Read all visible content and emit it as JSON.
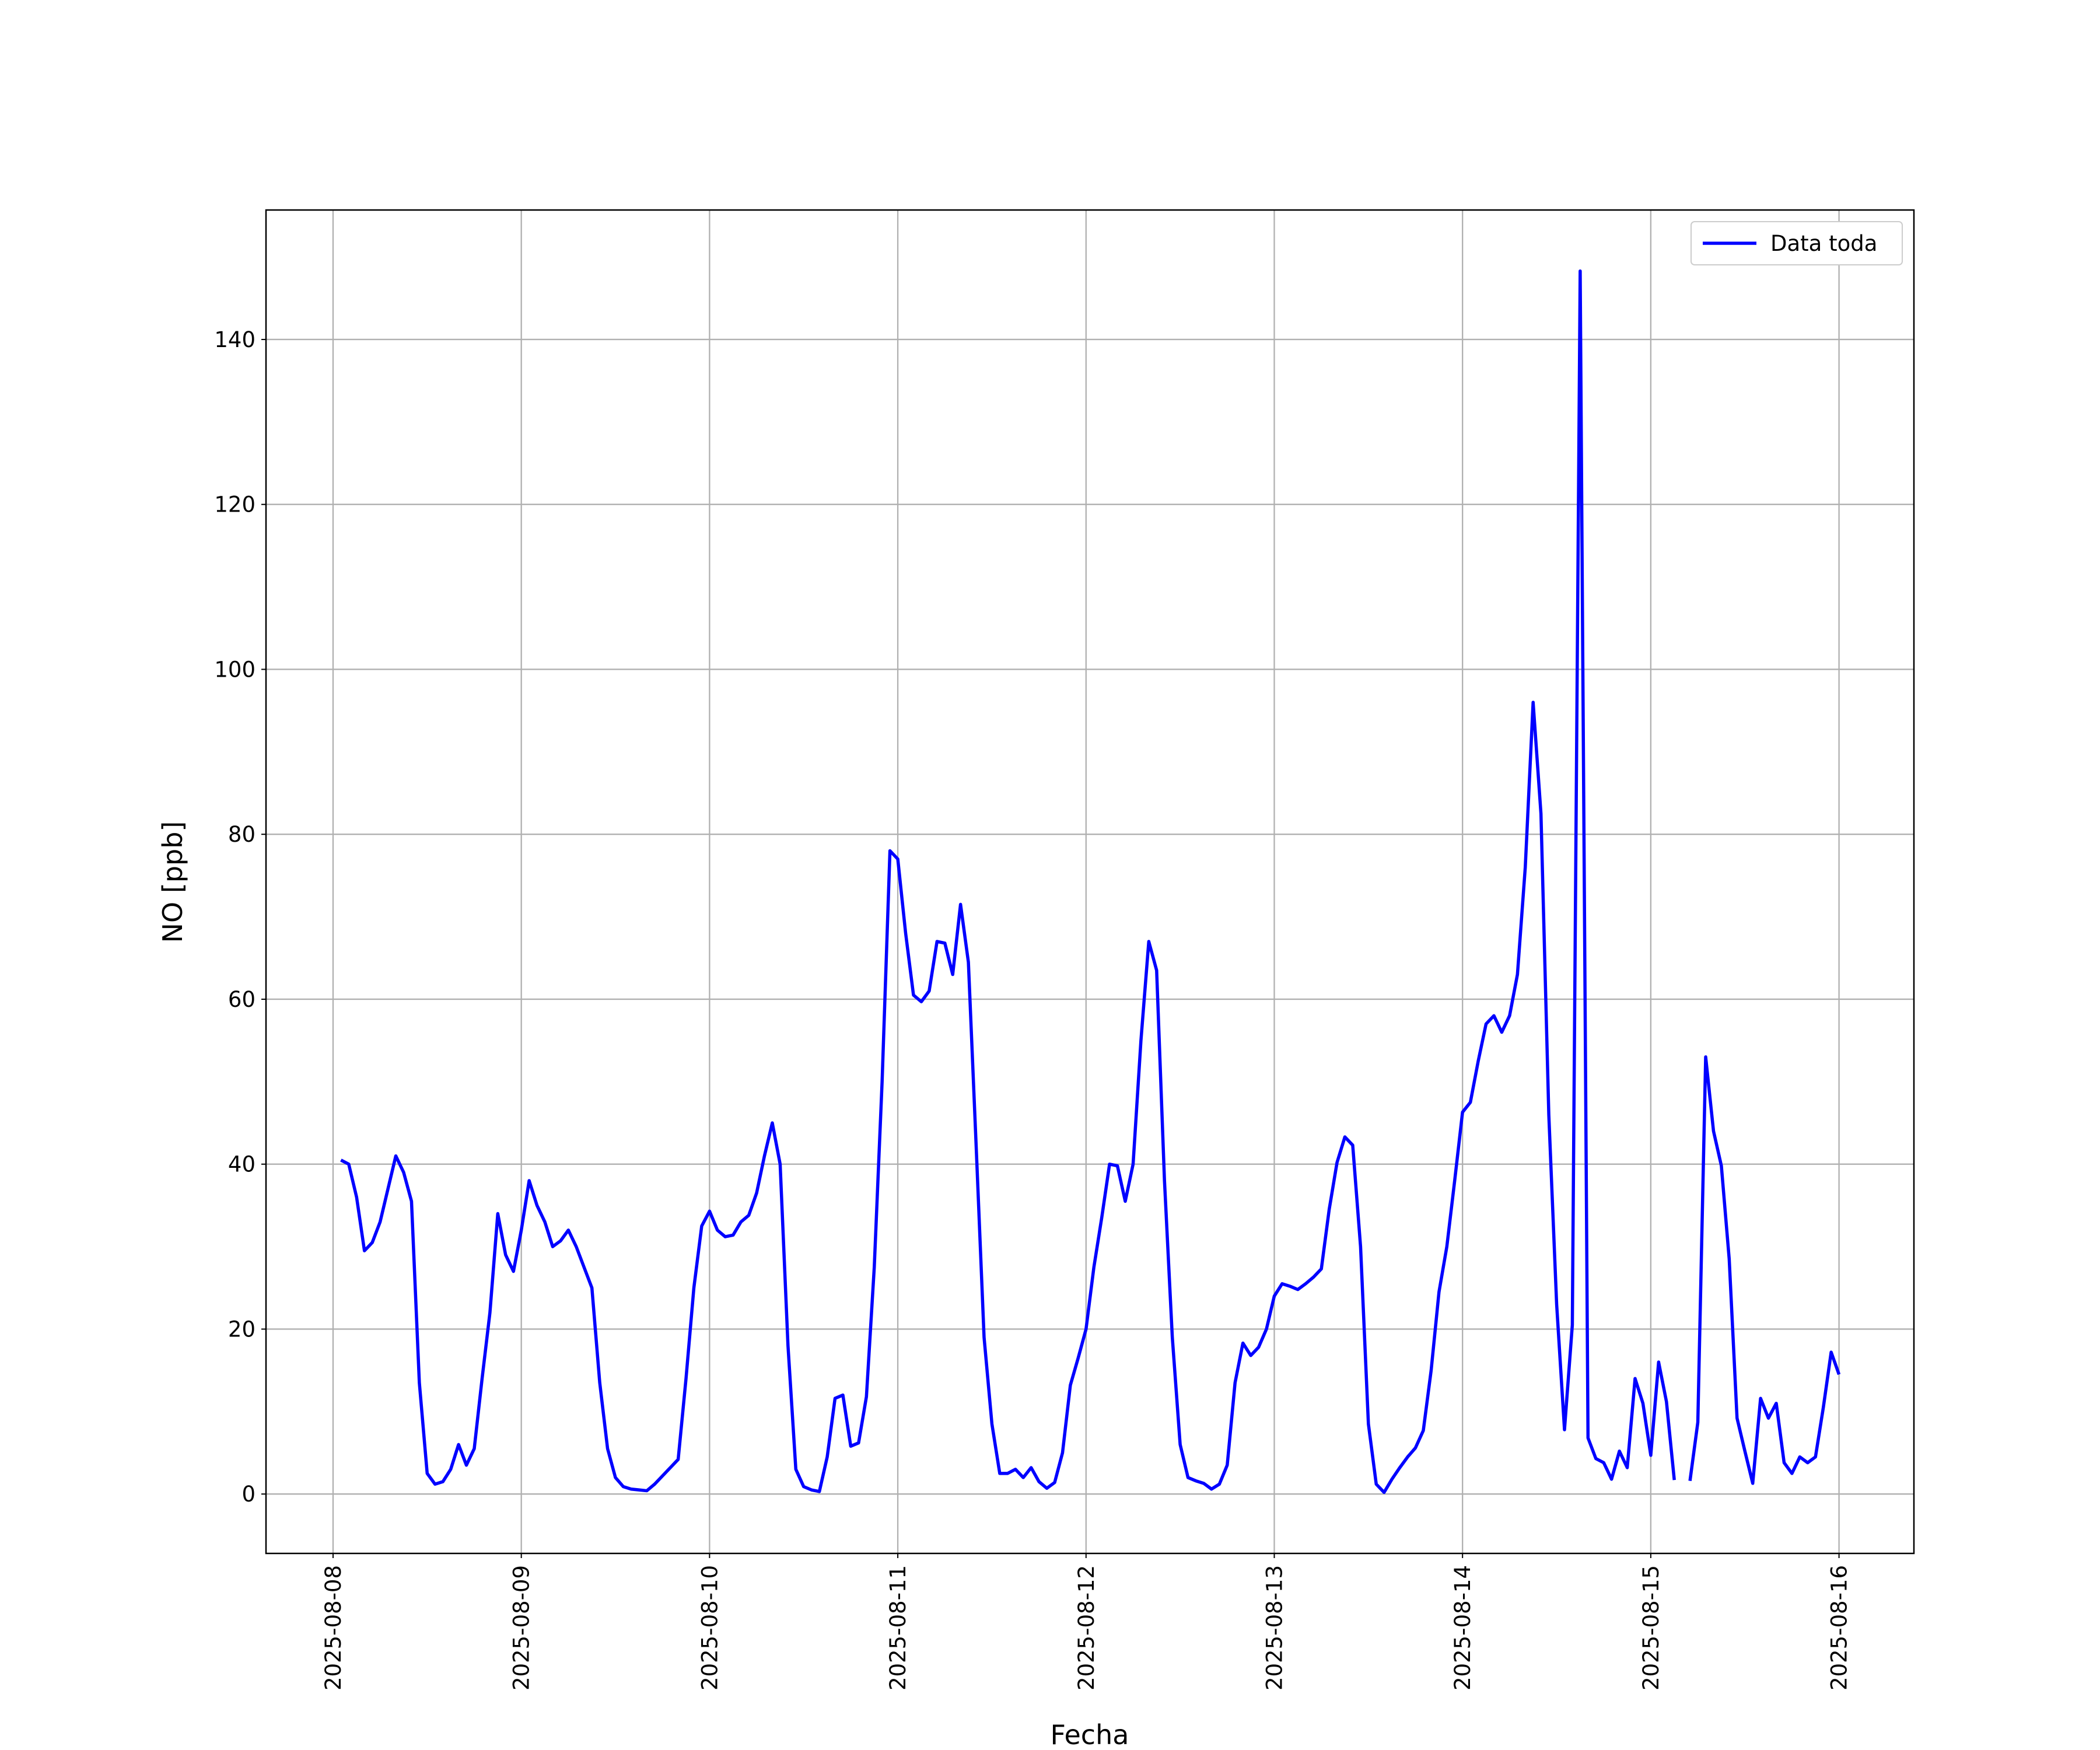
{
  "chart_data": {
    "type": "line",
    "xlabel": "Fecha",
    "ylabel": "NO [ppb]",
    "x": [
      "2025-08-08 01:00",
      "2025-08-08 02:00",
      "2025-08-08 03:00",
      "2025-08-08 04:00",
      "2025-08-08 05:00",
      "2025-08-08 06:00",
      "2025-08-08 07:00",
      "2025-08-08 08:00",
      "2025-08-08 09:00",
      "2025-08-08 10:00",
      "2025-08-08 11:00",
      "2025-08-08 12:00",
      "2025-08-08 13:00",
      "2025-08-08 14:00",
      "2025-08-08 15:00",
      "2025-08-08 16:00",
      "2025-08-08 17:00",
      "2025-08-08 18:00",
      "2025-08-08 19:00",
      "2025-08-08 20:00",
      "2025-08-08 21:00",
      "2025-08-08 22:00",
      "2025-08-08 23:00",
      "2025-08-09 00:00",
      "2025-08-09 01:00",
      "2025-08-09 02:00",
      "2025-08-09 03:00",
      "2025-08-09 04:00",
      "2025-08-09 05:00",
      "2025-08-09 06:00",
      "2025-08-09 07:00",
      "2025-08-09 08:00",
      "2025-08-09 09:00",
      "2025-08-09 10:00",
      "2025-08-09 11:00",
      "2025-08-09 12:00",
      "2025-08-09 13:00",
      "2025-08-09 14:00",
      "2025-08-09 15:00",
      "2025-08-09 16:00",
      "2025-08-09 17:00",
      "2025-08-09 18:00",
      "2025-08-09 19:00",
      "2025-08-09 20:00",
      "2025-08-09 21:00",
      "2025-08-09 22:00",
      "2025-08-09 23:00",
      "2025-08-10 00:00",
      "2025-08-10 01:00",
      "2025-08-10 02:00",
      "2025-08-10 03:00",
      "2025-08-10 04:00",
      "2025-08-10 05:00",
      "2025-08-10 06:00",
      "2025-08-10 07:00",
      "2025-08-10 08:00",
      "2025-08-10 09:00",
      "2025-08-10 10:00",
      "2025-08-10 11:00",
      "2025-08-10 12:00",
      "2025-08-10 13:00",
      "2025-08-10 14:00",
      "2025-08-10 15:00",
      "2025-08-10 16:00",
      "2025-08-10 17:00",
      "2025-08-10 18:00",
      "2025-08-10 19:00",
      "2025-08-10 20:00",
      "2025-08-10 21:00",
      "2025-08-10 22:00",
      "2025-08-10 23:00",
      "2025-08-11 00:00",
      "2025-08-11 01:00",
      "2025-08-11 02:00",
      "2025-08-11 03:00",
      "2025-08-11 04:00",
      "2025-08-11 05:00",
      "2025-08-11 06:00",
      "2025-08-11 07:00",
      "2025-08-11 08:00",
      "2025-08-11 09:00",
      "2025-08-11 10:00",
      "2025-08-11 11:00",
      "2025-08-11 12:00",
      "2025-08-11 13:00",
      "2025-08-11 14:00",
      "2025-08-11 15:00",
      "2025-08-11 16:00",
      "2025-08-11 17:00",
      "2025-08-11 18:00",
      "2025-08-11 19:00",
      "2025-08-11 20:00",
      "2025-08-11 21:00",
      "2025-08-11 22:00",
      "2025-08-11 23:00",
      "2025-08-12 00:00",
      "2025-08-12 01:00",
      "2025-08-12 02:00",
      "2025-08-12 03:00",
      "2025-08-12 04:00",
      "2025-08-12 05:00",
      "2025-08-12 06:00",
      "2025-08-12 07:00",
      "2025-08-12 08:00",
      "2025-08-12 09:00",
      "2025-08-12 10:00",
      "2025-08-12 11:00",
      "2025-08-12 12:00",
      "2025-08-12 13:00",
      "2025-08-12 14:00",
      "2025-08-12 15:00",
      "2025-08-12 16:00",
      "2025-08-12 17:00",
      "2025-08-12 18:00",
      "2025-08-12 19:00",
      "2025-08-12 20:00",
      "2025-08-12 21:00",
      "2025-08-12 22:00",
      "2025-08-12 23:00",
      "2025-08-13 00:00",
      "2025-08-13 01:00",
      "2025-08-13 02:00",
      "2025-08-13 03:00",
      "2025-08-13 04:00",
      "2025-08-13 05:00",
      "2025-08-13 06:00",
      "2025-08-13 07:00",
      "2025-08-13 08:00",
      "2025-08-13 09:00",
      "2025-08-13 10:00",
      "2025-08-13 11:00",
      "2025-08-13 12:00",
      "2025-08-13 13:00",
      "2025-08-13 14:00",
      "2025-08-13 15:00",
      "2025-08-13 16:00",
      "2025-08-13 17:00",
      "2025-08-13 18:00",
      "2025-08-13 19:00",
      "2025-08-13 20:00",
      "2025-08-13 21:00",
      "2025-08-13 22:00",
      "2025-08-13 23:00",
      "2025-08-14 00:00",
      "2025-08-14 01:00",
      "2025-08-14 02:00",
      "2025-08-14 03:00",
      "2025-08-14 04:00",
      "2025-08-14 05:00",
      "2025-08-14 06:00",
      "2025-08-14 07:00",
      "2025-08-14 08:00",
      "2025-08-14 09:00",
      "2025-08-14 10:00",
      "2025-08-14 11:00",
      "2025-08-14 12:00",
      "2025-08-14 13:00",
      "2025-08-14 14:00",
      "2025-08-14 15:00",
      "2025-08-14 16:00",
      "2025-08-14 17:00",
      "2025-08-14 18:00",
      "2025-08-14 19:00",
      "2025-08-14 20:00",
      "2025-08-14 21:00",
      "2025-08-14 22:00",
      "2025-08-14 23:00",
      "2025-08-15 00:00",
      "2025-08-15 01:00",
      "2025-08-15 02:00",
      "2025-08-15 03:00",
      "2025-08-15 04:00",
      "2025-08-15 05:00",
      "2025-08-15 06:00",
      "2025-08-15 07:00",
      "2025-08-15 08:00",
      "2025-08-15 09:00",
      "2025-08-15 10:00",
      "2025-08-15 11:00",
      "2025-08-15 12:00",
      "2025-08-15 13:00",
      "2025-08-15 14:00",
      "2025-08-15 15:00",
      "2025-08-15 16:00",
      "2025-08-15 17:00",
      "2025-08-15 18:00",
      "2025-08-15 19:00",
      "2025-08-15 20:00",
      "2025-08-15 21:00",
      "2025-08-15 22:00",
      "2025-08-15 23:00",
      "2025-08-16 00:00"
    ],
    "series": [
      {
        "name": "Data toda",
        "color": "#0000ff",
        "values": [
          40.5,
          40,
          36,
          29.5,
          30.5,
          33,
          37,
          41,
          39,
          35.5,
          13.5,
          2.5,
          1.2,
          1.5,
          3,
          6,
          3.5,
          5.5,
          14,
          22,
          34,
          29,
          27,
          32,
          38,
          35,
          33,
          30,
          30.7,
          32,
          30,
          27.5,
          25,
          13.5,
          5.5,
          2,
          0.9,
          0.6,
          0.5,
          0.4,
          1.2,
          2.2,
          3.2,
          4.2,
          14,
          25,
          32.5,
          34.3,
          32,
          31.2,
          31.4,
          33,
          33.8,
          36.5,
          41,
          45,
          40,
          18,
          3,
          0.9,
          0.5,
          0.3,
          4.5,
          11.6,
          12,
          5.8,
          6.2,
          11.8,
          27.5,
          50,
          78,
          77,
          68,
          60.5,
          59.7,
          61,
          67,
          66.8,
          63,
          71.5,
          64.5,
          42,
          19,
          8.5,
          2.5,
          2.5,
          3,
          2,
          3.2,
          1.5,
          0.7,
          1.4,
          5,
          13.2,
          16.5,
          20,
          27.5,
          33.5,
          40,
          39.8,
          35.5,
          40,
          55,
          67,
          63.5,
          38,
          19,
          6,
          2,
          1.6,
          1.3,
          0.6,
          1.2,
          3.5,
          13.5,
          18.3,
          16.8,
          17.8,
          20,
          24,
          25.5,
          25.2,
          24.8,
          25.5,
          26.3,
          27.3,
          34.5,
          40.2,
          43.3,
          42.3,
          30,
          8.5,
          1.2,
          0.2,
          1.8,
          3.2,
          4.5,
          5.6,
          7.7,
          15,
          24.5,
          30,
          38,
          46.3,
          47.5,
          52.5,
          57,
          58,
          56,
          58,
          63,
          76,
          96,
          82.5,
          46,
          23,
          7.8,
          20.5,
          148.3,
          6.8,
          4.3,
          3.8,
          1.8,
          5.2,
          3.2,
          14,
          11,
          4.7,
          16,
          11.2,
          1.7,
          null,
          1.6,
          8.7,
          53,
          44,
          39.8,
          28.5,
          9.2,
          5.2,
          1.3,
          11.6,
          9.2,
          11,
          3.8,
          2.5,
          4.5,
          3.8,
          4.5,
          10.5,
          17.2,
          14.5
        ]
      }
    ],
    "xlim": [
      "2025-08-07 15:27",
      "2025-08-16 09:33"
    ],
    "xticks": [
      "2025-08-08",
      "2025-08-09",
      "2025-08-10",
      "2025-08-11",
      "2025-08-12",
      "2025-08-13",
      "2025-08-14",
      "2025-08-15",
      "2025-08-16"
    ],
    "ylim": [
      -7.2,
      155.7
    ],
    "yticks": [
      0,
      20,
      40,
      60,
      80,
      100,
      120,
      140
    ],
    "grid": true,
    "legend": "upper right"
  }
}
